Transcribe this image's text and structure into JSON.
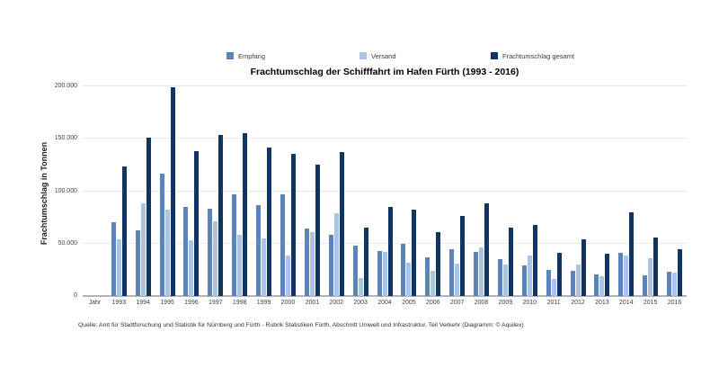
{
  "page": {
    "background": "#ffffff"
  },
  "chart_data": {
    "type": "bar",
    "title": "Frachtumschlag der Schifffahrt im Hafen Fürth (1993 - 2016)",
    "xlabel": "Jahr",
    "ylabel": "Frachtumschlag in Tonnen",
    "categories": [
      "1993",
      "1994",
      "1995",
      "1996",
      "1997",
      "1998",
      "1999",
      "2000",
      "2001",
      "2002",
      "2003",
      "2004",
      "2005",
      "2006",
      "2007",
      "2008",
      "2009",
      "2010",
      "2011",
      "2012",
      "2013",
      "2014",
      "2015",
      "2016"
    ],
    "series": [
      {
        "name": "Empfang",
        "color": "#5b84b8",
        "values": [
          70000,
          63000,
          117000,
          85000,
          83000,
          97000,
          87000,
          97000,
          64000,
          58000,
          48000,
          43000,
          50000,
          37000,
          45000,
          42000,
          35000,
          29000,
          25000,
          24000,
          21000,
          41000,
          20000,
          23000
        ]
      },
      {
        "name": "Versand",
        "color": "#a9c5e3",
        "values": [
          54000,
          88000,
          82000,
          53000,
          71000,
          58000,
          55000,
          39000,
          61000,
          79000,
          17000,
          42000,
          32000,
          24000,
          31000,
          46000,
          30000,
          39000,
          16000,
          30000,
          19000,
          39000,
          36000,
          22000
        ]
      },
      {
        "name": "Frachtumschlag gesamt",
        "color": "#103561",
        "values": [
          124000,
          151000,
          199000,
          138000,
          154000,
          155000,
          142000,
          136000,
          125000,
          137000,
          65000,
          85000,
          82000,
          61000,
          76000,
          88000,
          65000,
          68000,
          41000,
          54000,
          40000,
          80000,
          56000,
          45000
        ]
      }
    ],
    "ylim": [
      0,
      200000
    ],
    "ytick_values": [
      0,
      50000,
      100000,
      150000,
      200000
    ],
    "ytick_labels": [
      "0",
      "50.000",
      "100.000",
      "150.000",
      "200.000"
    ],
    "grid": "horizontal",
    "legend_position": "top"
  },
  "footer": {
    "source": "Quelle: Amt für Stadtforschung und Statistik für Nürnberg und Fürth - Rubrik Statistiken Fürth, Abschnitt Umwelt und Infrastruktur, Teil Verkehr  (Diagramm: © Aquilex)"
  }
}
